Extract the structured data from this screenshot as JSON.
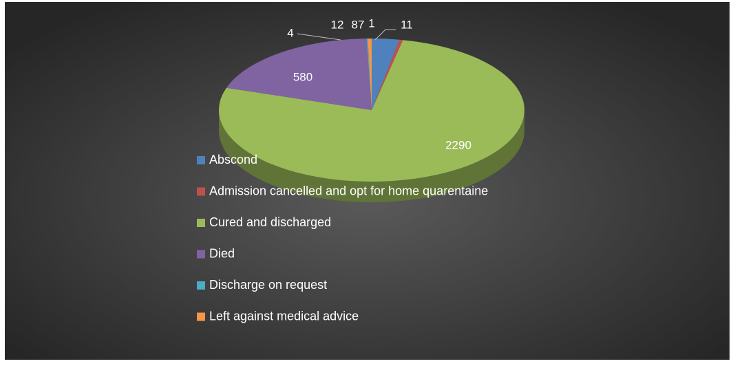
{
  "chart_data": {
    "type": "pie",
    "categories": [
      "Abscond",
      "Admission cancelled and opt for home quarentaine",
      "Cured and discharged",
      "Died",
      "Discharge on request",
      "Left against medical advice"
    ],
    "values": [
      87,
      11,
      2290,
      580,
      4,
      12
    ],
    "colors": [
      "#4f81bd",
      "#c0504d",
      "#9bbb59",
      "#8064a2",
      "#4bacc6",
      "#f79646"
    ],
    "annotations": [
      "1"
    ],
    "legend": "left"
  }
}
